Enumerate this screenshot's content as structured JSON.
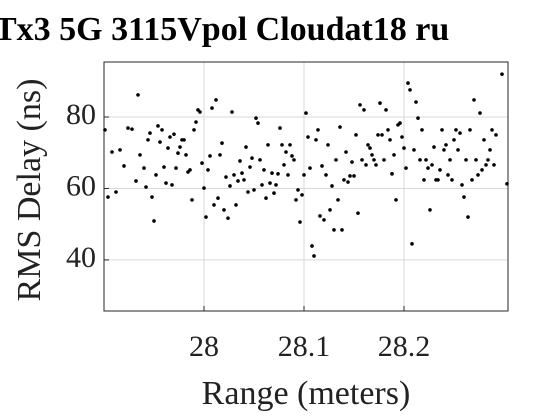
{
  "chart_data": {
    "type": "scatter",
    "title": "Tx3 5G 3115Vpol Cloudat18 ru",
    "xlabel": "Range (meters)",
    "ylabel": "RMS Delay (ns)",
    "color": "#000000",
    "grid": true,
    "xlim": [
      27.9,
      28.304
    ],
    "ylim": [
      25.7,
      95.4
    ],
    "xticks": [
      28,
      28.1,
      28.2
    ],
    "yticks": [
      40,
      60,
      80
    ],
    "x": [
      27.901,
      27.904,
      27.908,
      27.912,
      27.916,
      27.92,
      27.924,
      27.928,
      27.932,
      27.934,
      27.936,
      27.94,
      27.942,
      27.944,
      27.946,
      27.948,
      27.95,
      27.952,
      27.954,
      27.956,
      27.958,
      27.96,
      27.962,
      27.964,
      27.966,
      27.968,
      27.97,
      27.972,
      27.974,
      27.976,
      27.978,
      27.98,
      27.982,
      27.984,
      27.986,
      27.988,
      27.99,
      27.992,
      27.994,
      27.996,
      27.998,
      28.0,
      28.002,
      28.004,
      28.006,
      28.008,
      28.01,
      28.012,
      28.014,
      28.016,
      28.018,
      28.02,
      28.022,
      28.024,
      28.026,
      28.028,
      28.03,
      28.032,
      28.034,
      28.036,
      28.038,
      28.04,
      28.042,
      28.044,
      28.046,
      28.048,
      28.05,
      28.052,
      28.054,
      28.056,
      28.058,
      28.06,
      28.062,
      28.064,
      28.066,
      28.068,
      28.07,
      28.072,
      28.074,
      28.076,
      28.078,
      28.08,
      28.082,
      28.084,
      28.086,
      28.088,
      28.09,
      28.092,
      28.094,
      28.096,
      28.098,
      28.1,
      28.102,
      28.104,
      28.106,
      28.108,
      28.11,
      28.112,
      28.114,
      28.116,
      28.118,
      28.12,
      28.122,
      28.124,
      28.126,
      28.128,
      28.13,
      28.132,
      28.134,
      28.136,
      28.138,
      28.14,
      28.142,
      28.144,
      28.146,
      28.148,
      28.15,
      28.152,
      28.154,
      28.156,
      28.158,
      28.16,
      28.162,
      28.164,
      28.166,
      28.168,
      28.17,
      28.172,
      28.174,
      28.176,
      28.178,
      28.18,
      28.182,
      28.184,
      28.186,
      28.188,
      28.19,
      28.192,
      28.194,
      28.196,
      28.198,
      28.2,
      28.202,
      28.204,
      28.206,
      28.208,
      28.21,
      28.212,
      28.214,
      28.216,
      28.218,
      28.22,
      28.222,
      28.224,
      28.226,
      28.228,
      28.23,
      28.232,
      28.234,
      28.236,
      28.238,
      28.24,
      28.242,
      28.244,
      28.246,
      28.248,
      28.25,
      28.252,
      28.254,
      28.256,
      28.258,
      28.26,
      28.262,
      28.264,
      28.266,
      28.268,
      28.27,
      28.272,
      28.274,
      28.276,
      28.278,
      28.28,
      28.282,
      28.284,
      28.286,
      28.288,
      28.29,
      28.292,
      28.298,
      28.303
    ],
    "y": [
      76.4,
      57.6,
      70.2,
      59.0,
      70.8,
      66.3,
      76.9,
      76.6,
      62.1,
      86.2,
      69.4,
      65.7,
      60.4,
      73.6,
      75.5,
      57.6,
      50.9,
      63.8,
      77.5,
      73.0,
      76.4,
      66.0,
      61.5,
      71.3,
      74.4,
      61.0,
      75.2,
      65.7,
      69.9,
      71.6,
      73.6,
      73.6,
      69.4,
      64.6,
      65.2,
      56.8,
      76.4,
      78.6,
      82.0,
      81.4,
      67.1,
      60.1,
      52.0,
      65.2,
      69.1,
      82.5,
      55.4,
      84.8,
      57.3,
      69.4,
      72.7,
      54.0,
      63.2,
      51.7,
      60.7,
      81.4,
      63.8,
      55.4,
      62.1,
      67.7,
      64.3,
      62.4,
      71.6,
      59.0,
      66.0,
      68.5,
      59.6,
      79.7,
      78.3,
      68.0,
      61.0,
      65.2,
      57.3,
      72.2,
      61.5,
      64.3,
      58.7,
      61.0,
      64.1,
      76.9,
      72.2,
      66.6,
      70.2,
      63.8,
      72.2,
      69.1,
      68.0,
      56.8,
      59.6,
      50.6,
      58.2,
      63.8,
      81.1,
      74.4,
      65.7,
      43.9,
      41.1,
      73.6,
      76.4,
      52.3,
      66.3,
      51.2,
      63.8,
      72.2,
      54.0,
      60.7,
      48.4,
      68.0,
      56.8,
      77.2,
      48.4,
      62.4,
      70.2,
      61.8,
      63.5,
      67.4,
      63.5,
      75.0,
      53.1,
      83.4,
      68.0,
      82.0,
      66.6,
      72.2,
      71.3,
      69.4,
      68.0,
      66.6,
      75.0,
      83.9,
      75.0,
      68.0,
      82.0,
      76.4,
      73.6,
      64.1,
      69.4,
      56.8,
      77.8,
      78.3,
      74.4,
      71.3,
      65.7,
      89.5,
      87.6,
      44.5,
      70.8,
      84.2,
      79.7,
      68.0,
      76.4,
      62.4,
      68.0,
      65.7,
      54.0,
      66.6,
      71.6,
      62.4,
      62.4,
      65.2,
      76.4,
      70.8,
      72.2,
      63.8,
      68.0,
      62.4,
      73.6,
      76.4,
      70.8,
      75.5,
      61.0,
      57.6,
      68.0,
      52.0,
      76.4,
      62.4,
      84.8,
      68.0,
      63.8,
      81.1,
      65.2,
      73.6,
      66.6,
      68.0,
      70.8,
      76.4,
      66.6,
      75.0,
      92.0,
      61.3
    ]
  }
}
